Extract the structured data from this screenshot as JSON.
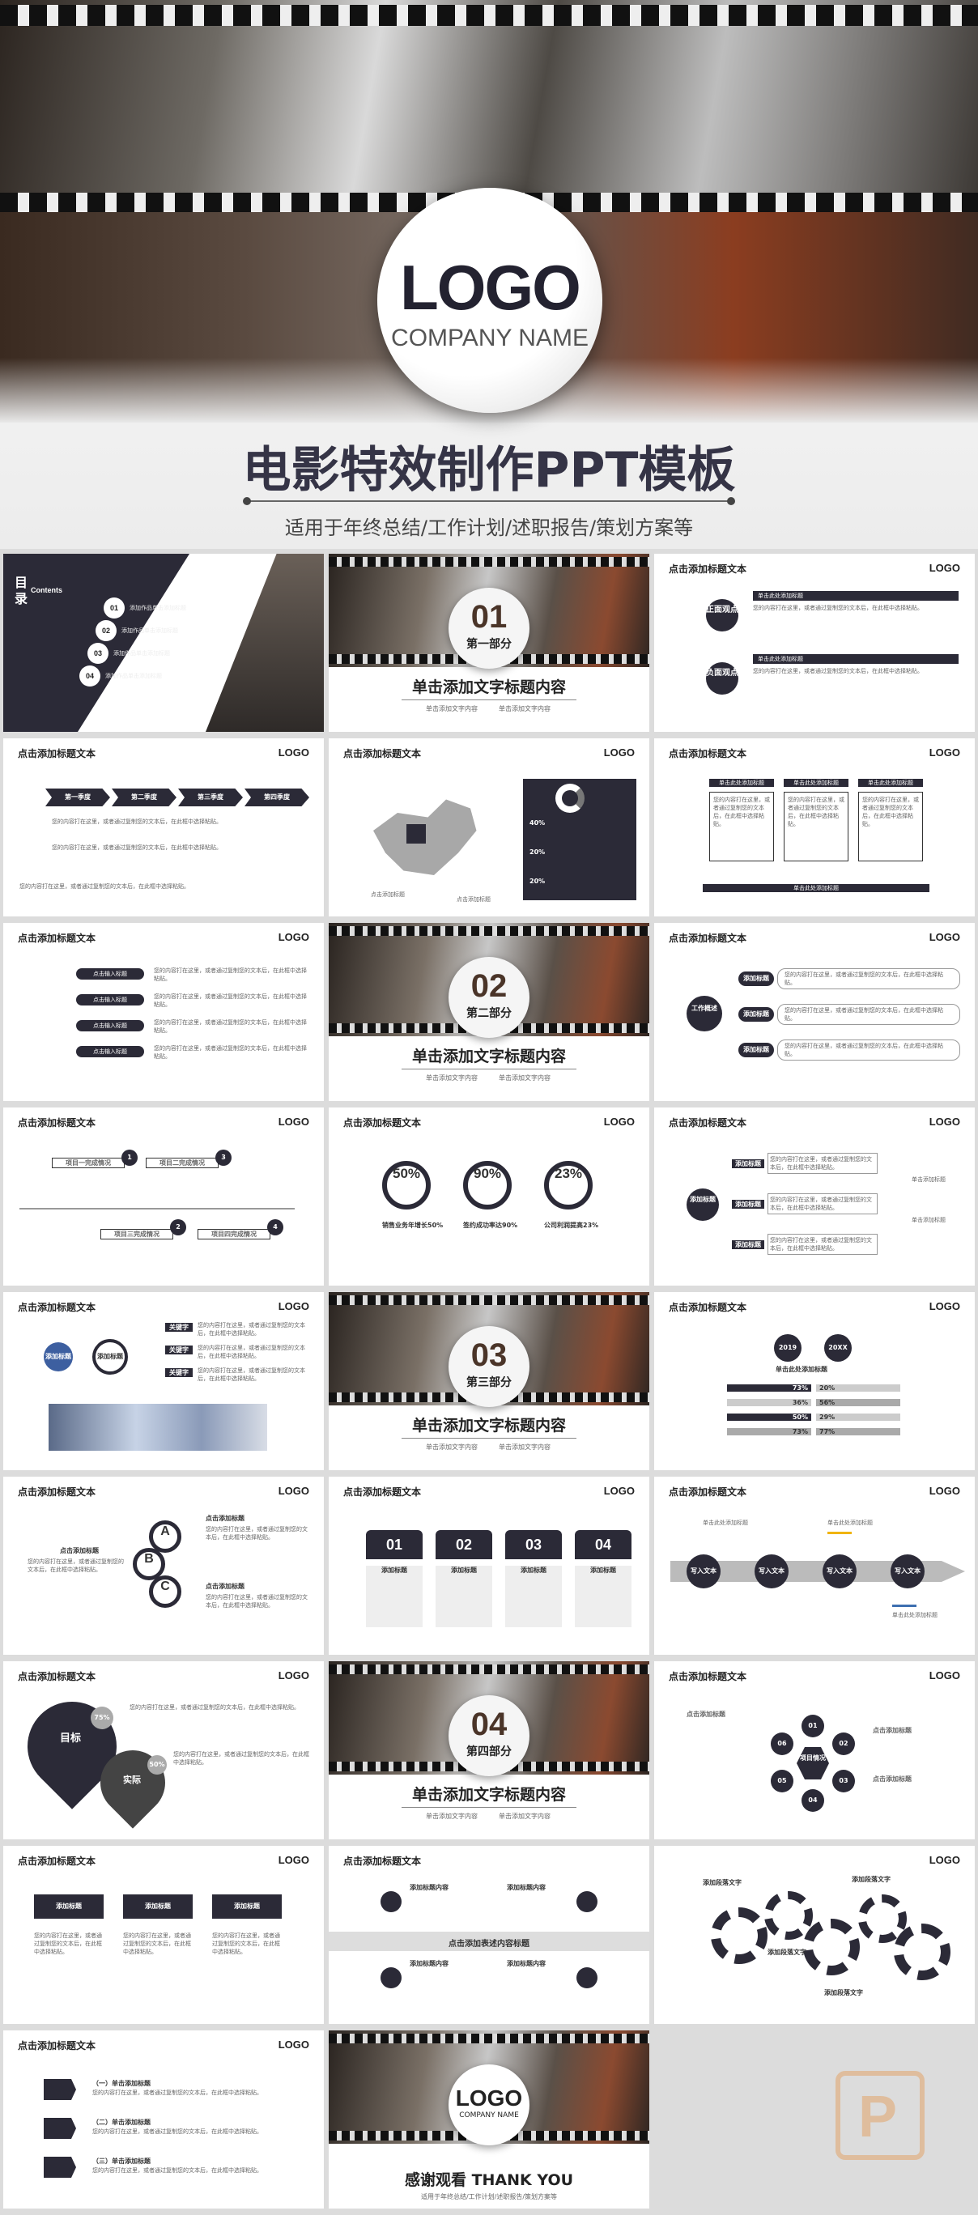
{
  "hero": {
    "logo": "LOGO",
    "company": "COMPANY NAME",
    "title": "电影特效制作PPT模板",
    "subtitle": "适用于年终总结/工作计划/述职报告/策划方案等"
  },
  "common": {
    "header": "点击添加标题文本",
    "logo": "LOGO",
    "body": "您的内容打在这里，或者通过复制您的文本后，在此框中选择粘贴。",
    "add_title": "添加标题",
    "click_add": "点击添加标题",
    "caption": "单击添加文字内容"
  },
  "toc": {
    "title": "目录",
    "contents": "Contents",
    "items": [
      {
        "num": "01",
        "label": "添加作品单击添加标题"
      },
      {
        "num": "02",
        "label": "添加作品单击添加标题"
      },
      {
        "num": "03",
        "label": "添加作品单击添加标题"
      },
      {
        "num": "04",
        "label": "添加作品单击添加标题"
      }
    ]
  },
  "sections": [
    {
      "num": "01",
      "part": "第一部分"
    },
    {
      "num": "02",
      "part": "第二部分"
    },
    {
      "num": "03",
      "part": "第三部分"
    },
    {
      "num": "04",
      "part": "第四部分"
    }
  ],
  "section_title": "单击添加文字标题内容",
  "section_caption": "单击添加文字内容",
  "pros_cons": {
    "pro": "正面观点",
    "con": "负面观点",
    "label": "单击此处添加标题"
  },
  "seasons": [
    "第一季度",
    "第二季度",
    "第三季度",
    "第四季度"
  ],
  "map": {
    "stats": [
      "40%",
      "20%",
      "20%"
    ],
    "label1": "点击添加标题",
    "label2": "点击添加标题"
  },
  "three_col": {
    "cols": [
      "单击此处添加标题",
      "单击此处添加标题",
      "单击此处添加标题"
    ],
    "bar": "单击此处添加标题"
  },
  "icons_list": {
    "items": [
      "点击输入标题",
      "点击输入标题",
      "点击输入标题",
      "点击输入标题"
    ]
  },
  "work": {
    "center": "工作概述",
    "items": [
      "添加标题",
      "添加标题",
      "添加标题"
    ]
  },
  "timeline": {
    "items": [
      {
        "num": "1",
        "label": "项目一完成情况"
      },
      {
        "num": "2",
        "label": "项目三完成情况"
      },
      {
        "num": "3",
        "label": "项目二完成情况"
      },
      {
        "num": "4",
        "label": "项目四完成情况"
      }
    ]
  },
  "percents": [
    {
      "value": "50%",
      "label": "销售业务年增长50%"
    },
    {
      "value": "90%",
      "label": "签约成功率达90%"
    },
    {
      "value": "23%",
      "label": "公司利润提高23%"
    }
  ],
  "add": {
    "center": "添加标题",
    "side": [
      "添加标题",
      "添加标题",
      "添加标题"
    ],
    "right": [
      "单击添加标题",
      "单击添加标题",
      "单击添加标题"
    ]
  },
  "keywords": {
    "c1": "添加标题",
    "c2": "添加标题",
    "kws": [
      "关键字",
      "关键字",
      "关键字"
    ]
  },
  "compare": {
    "y1": "2019",
    "y2": "20XX",
    "title": "单击此处添加标题",
    "rows": [
      [
        "73%",
        "20%"
      ],
      [
        "36%",
        "56%"
      ],
      [
        "50%",
        "29%"
      ],
      [
        "73%",
        "77%"
      ]
    ]
  },
  "abc": {
    "letters": [
      "A",
      "B",
      "C"
    ],
    "title": "点击添加标题"
  },
  "cards": [
    {
      "num": "01",
      "title": "添加标题"
    },
    {
      "num": "02",
      "title": "添加标题"
    },
    {
      "num": "03",
      "title": "添加标题"
    },
    {
      "num": "04",
      "title": "添加标题"
    }
  ],
  "arrow": {
    "items": [
      "写入文本",
      "写入文本",
      "写入文本",
      "写入文本"
    ],
    "caption": "单击此处添加标题"
  },
  "hearts": {
    "goal": "目标",
    "practice": "实际",
    "p1": "75%",
    "p2": "50%"
  },
  "hex": {
    "center": "项目情况",
    "nums": [
      "01",
      "02",
      "03",
      "04",
      "05",
      "06"
    ],
    "label": "点击添加标题"
  },
  "three_tabs": {
    "items": [
      "添加标题",
      "添加标题",
      "添加标题"
    ]
  },
  "mid": {
    "center": "点击添加表述内容标题",
    "items": [
      "添加标题内容",
      "添加标题内容",
      "添加标题内容",
      "添加标题内容"
    ]
  },
  "gears": {
    "items": [
      "添加段落文字",
      "添加段落文字",
      "添加段落文字",
      "添加段落文字",
      "添加段落文字"
    ]
  },
  "list3": {
    "items": [
      "（一）单击添加标题",
      "（二）单击添加标题",
      "（三）单击添加标题"
    ]
  },
  "thanks": {
    "logo": "LOGO",
    "company": "COMPANY NAME",
    "text": "感谢观看 THANK YOU",
    "sub": "适用于年终总结/工作计划/述职报告/策划方案等"
  }
}
